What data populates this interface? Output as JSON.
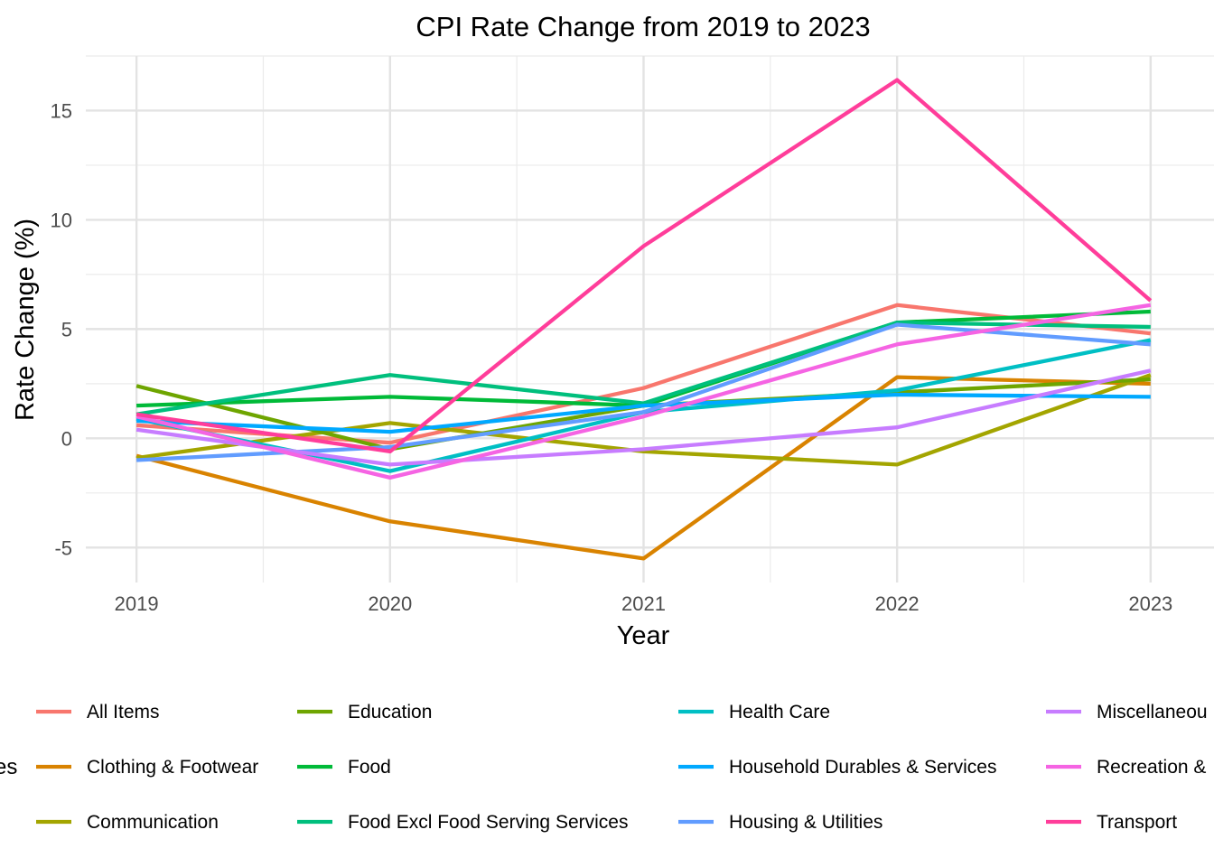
{
  "chart_data": {
    "type": "line",
    "title": "CPI Rate Change from 2019 to 2023",
    "xlabel": "Year",
    "ylabel": "Rate Change (%)",
    "x": [
      2019,
      2020,
      2021,
      2022,
      2023
    ],
    "x_tick_labels": [
      "2019",
      "2020",
      "2021",
      "2022",
      "2023"
    ],
    "y_ticks": [
      -5,
      0,
      5,
      10,
      15
    ],
    "y_tick_labels": [
      "-5",
      "0",
      "5",
      "10",
      "15"
    ],
    "xlim": [
      2018.8,
      2023.25
    ],
    "ylim": [
      -6.6,
      17.5
    ],
    "grid": true,
    "legend_position": "bottom",
    "legend_title": "es",
    "series": [
      {
        "name": "All Items",
        "color": "#F8766D",
        "values": [
          0.6,
          -0.2,
          2.3,
          6.1,
          4.8
        ]
      },
      {
        "name": "Clothing & Footwear",
        "color": "#D98300",
        "values": [
          -0.8,
          -3.8,
          -5.5,
          2.8,
          2.5
        ]
      },
      {
        "name": "Communication",
        "color": "#A3A500",
        "values": [
          -0.9,
          0.7,
          -0.6,
          -1.2,
          2.9
        ]
      },
      {
        "name": "Education",
        "color": "#6EA500",
        "values": [
          2.4,
          -0.5,
          1.5,
          2.1,
          2.7
        ]
      },
      {
        "name": "Food",
        "color": "#00BA38",
        "values": [
          1.5,
          1.9,
          1.5,
          5.3,
          5.8
        ]
      },
      {
        "name": "Food Excl Food Serving Services",
        "color": "#00BF7D",
        "values": [
          1.1,
          2.9,
          1.6,
          5.3,
          5.1
        ]
      },
      {
        "name": "Health Care",
        "color": "#00BFC4",
        "values": [
          0.9,
          -1.5,
          1.2,
          2.2,
          4.5
        ]
      },
      {
        "name": "Household Durables & Services",
        "color": "#00A9FF",
        "values": [
          0.8,
          0.3,
          1.5,
          2.0,
          1.9
        ]
      },
      {
        "name": "Housing & Utilities",
        "color": "#619CFF",
        "values": [
          -1.0,
          -0.4,
          1.2,
          5.2,
          4.3
        ]
      },
      {
        "name": "Miscellaneous Goods & Services",
        "color": "#C77CFF",
        "values": [
          0.4,
          -1.2,
          -0.5,
          0.5,
          3.1
        ]
      },
      {
        "name": "Recreation & Culture",
        "color": "#F564E3",
        "values": [
          1.0,
          -1.8,
          1.0,
          4.3,
          6.1
        ]
      },
      {
        "name": "Transport",
        "color": "#FF3D9A",
        "values": [
          1.1,
          -0.6,
          8.8,
          16.4,
          6.3
        ]
      }
    ],
    "legend_visible_labels": [
      "All Items",
      "Clothing & Footwear",
      "Communication",
      "Education",
      "Food",
      "Food Excl Food Serving Services",
      "Health Care",
      "Household Durables & Services",
      "Housing & Utilities",
      "Miscellaneou",
      "Recreation &",
      "Transport"
    ]
  }
}
